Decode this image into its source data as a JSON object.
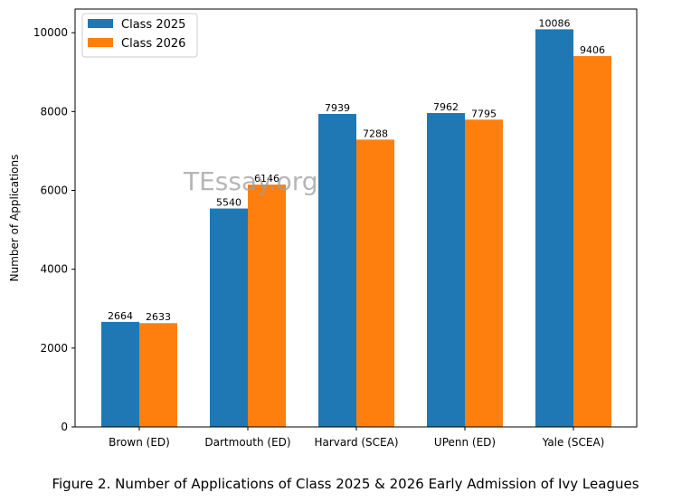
{
  "chart_data": {
    "type": "bar",
    "categories": [
      "Brown (ED)",
      "Dartmouth (ED)",
      "Harvard (SCEA)",
      "UPenn (ED)",
      "Yale (SCEA)"
    ],
    "series": [
      {
        "name": "Class 2025",
        "values": [
          2664,
          5540,
          7939,
          7962,
          10086
        ],
        "color": "#1f77b4"
      },
      {
        "name": "Class 2026",
        "values": [
          2633,
          6146,
          7288,
          7795,
          9406
        ],
        "color": "#ff7f0e"
      }
    ],
    "title": "",
    "xlabel": "",
    "ylabel": "Number of Applications",
    "ylim": [
      0,
      10600
    ],
    "yticks": [
      0,
      2000,
      4000,
      6000,
      8000,
      10000
    ],
    "legend_position": "top-left",
    "grid": false
  },
  "watermark": "TEssay.org",
  "caption": "Figure 2. Number of Applications of Class 2025 & 2026 Early Admission of Ivy Leagues"
}
